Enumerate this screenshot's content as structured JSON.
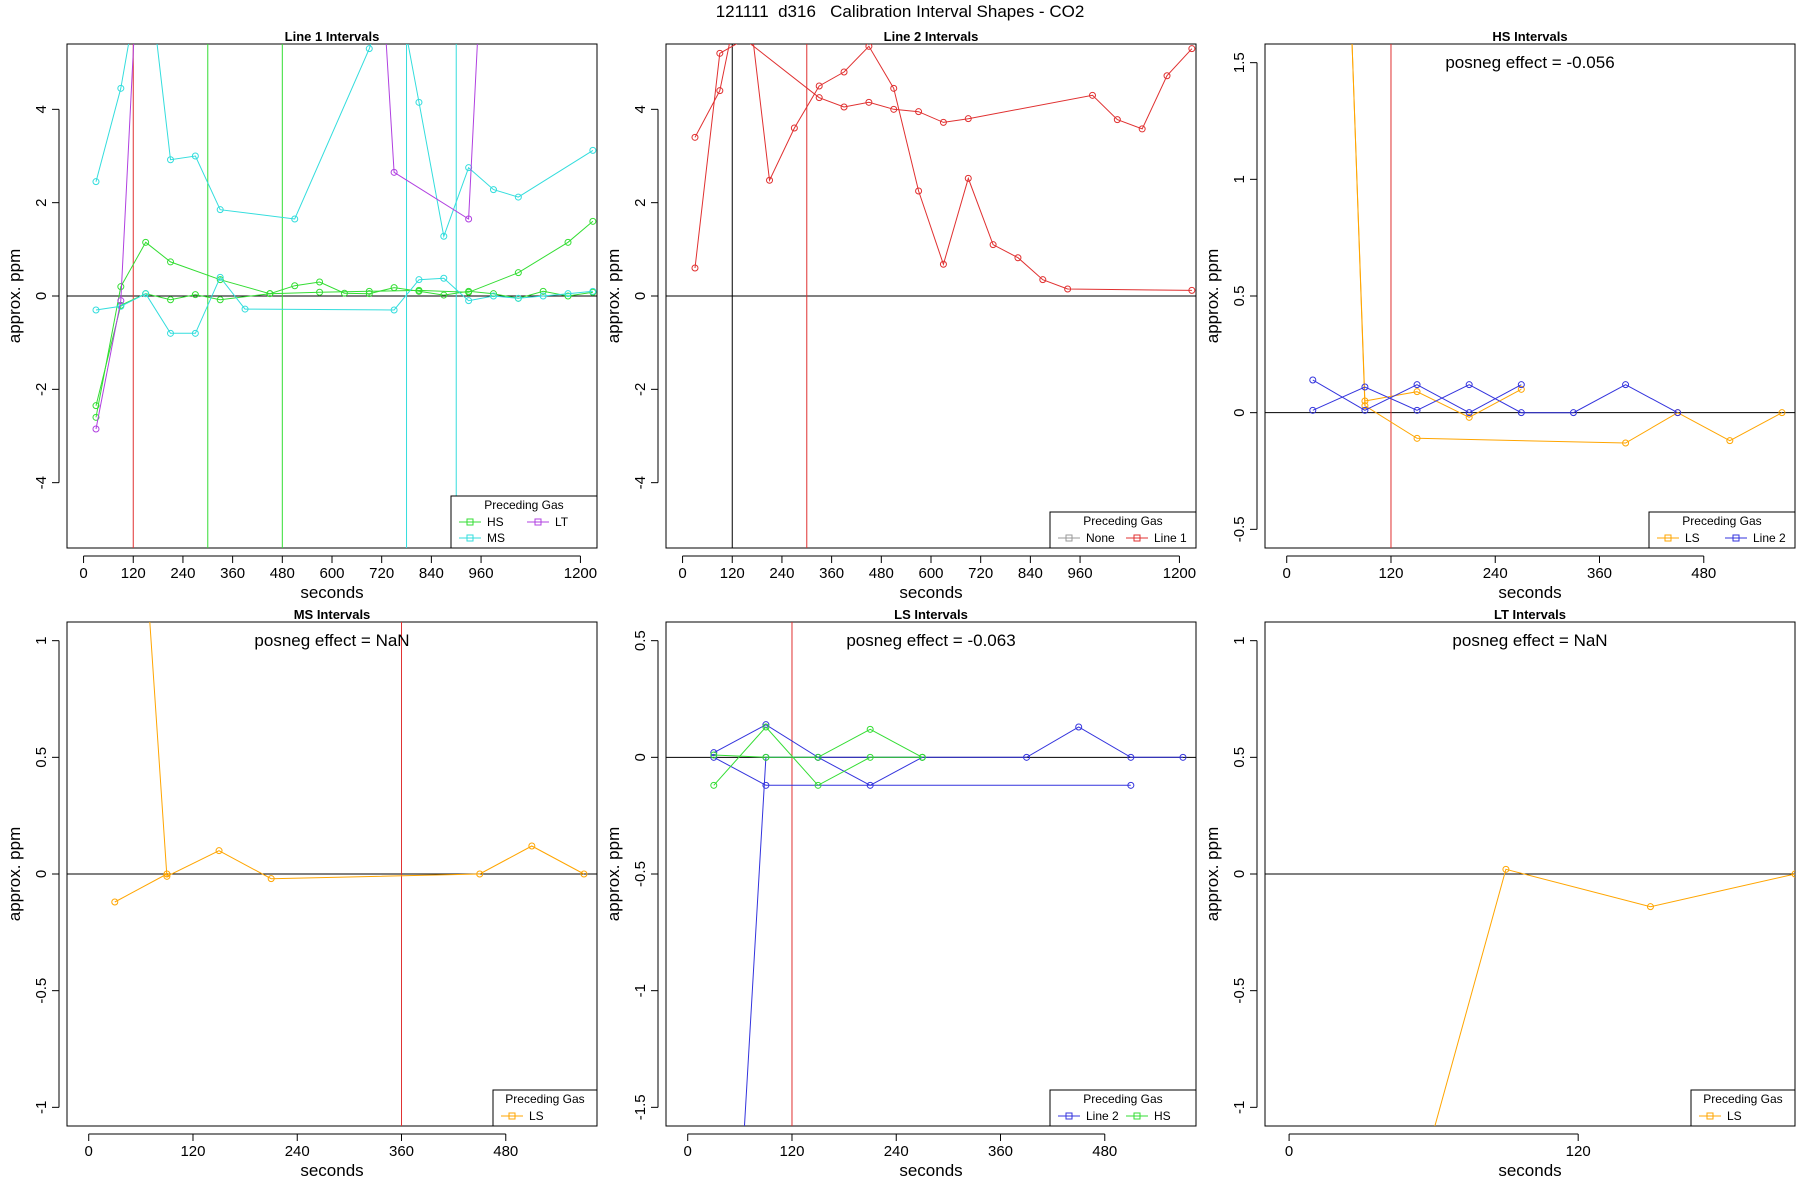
{
  "page_title": "121111  d316   Calibration Interval Shapes - CO2",
  "colors": {
    "HS": "#33dd33",
    "MS": "#33dddd",
    "LS": "#ffa500",
    "LT": "#b040e0",
    "Line 1": "#e03030",
    "Line 2": "#3333dd",
    "None": "#999999",
    "axis": "#000000"
  },
  "chart_data": [
    {
      "type": "line",
      "title": "Line 1 Intervals",
      "xlabel": "seconds",
      "ylabel": "approx. ppm",
      "xlim": [
        -40,
        1240
      ],
      "ylim": [
        -5.4,
        5.4
      ],
      "xticks": [
        0,
        120,
        240,
        360,
        480,
        600,
        720,
        840,
        960,
        1200
      ],
      "yticks": [
        -4,
        -2,
        0,
        2,
        4
      ],
      "hline": 0,
      "annotation": "",
      "legend": {
        "title": "Preceding Gas",
        "entries": [
          "HS",
          "LT",
          "MS"
        ],
        "columns": 2
      },
      "vlines": [
        {
          "x": 120,
          "color": "Line 1"
        },
        {
          "x": 300,
          "color": "HS"
        },
        {
          "x": 480,
          "color": "HS"
        },
        {
          "x": 780,
          "color": "MS"
        },
        {
          "x": 900,
          "color": "MS"
        }
      ],
      "series": [
        {
          "name": "HS",
          "x": [
            30,
            90,
            150,
            210,
            330,
            450,
            570,
            690,
            810,
            930,
            1050,
            1170,
            1230
          ],
          "y": [
            -2.6,
            0.2,
            1.15,
            0.73,
            0.35,
            0.05,
            0.08,
            0.1,
            0.12,
            0.08,
            0.5,
            1.15,
            1.6
          ]
        },
        {
          "name": "HS",
          "x": [
            30,
            90,
            150,
            210,
            270,
            330,
            450,
            510,
            570,
            630,
            690,
            750,
            810,
            870,
            930,
            990,
            1050,
            1110,
            1170,
            1230
          ],
          "y": [
            -2.35,
            -0.2,
            0.05,
            -0.08,
            0.03,
            -0.08,
            0.05,
            0.22,
            0.3,
            0.06,
            0.05,
            0.18,
            0.1,
            0.02,
            0.1,
            0.05,
            -0.05,
            0.1,
            0.0,
            0.08
          ]
        },
        {
          "name": "MS",
          "x": [
            30,
            90,
            150,
            210,
            270,
            330,
            510,
            690,
            750,
            810,
            870,
            930,
            990,
            1050,
            1230
          ],
          "y": [
            2.45,
            4.45,
            7.5,
            2.92,
            3.0,
            1.85,
            1.65,
            5.3,
            7.0,
            4.15,
            1.28,
            2.75,
            2.28,
            2.12,
            3.12
          ]
        },
        {
          "name": "MS",
          "x": [
            30,
            90,
            150,
            210,
            270,
            330,
            390,
            750,
            810,
            870,
            930,
            990,
            1050,
            1110,
            1170,
            1230
          ],
          "y": [
            -0.3,
            -0.22,
            0.05,
            -0.8,
            -0.8,
            0.4,
            -0.28,
            -0.3,
            0.35,
            0.38,
            -0.1,
            0.0,
            -0.05,
            0.0,
            0.05,
            0.1
          ]
        },
        {
          "name": "LT",
          "x": [
            30,
            90,
            130
          ],
          "y": [
            -2.85,
            -0.1,
            7.0
          ]
        },
        {
          "name": "LT",
          "x": [
            720,
            750,
            930,
            960
          ],
          "y": [
            7.0,
            2.65,
            1.65,
            7.0
          ]
        }
      ]
    },
    {
      "type": "line",
      "title": "Line 2 Intervals",
      "xlabel": "seconds",
      "ylabel": "approx. ppm",
      "xlim": [
        -40,
        1240
      ],
      "ylim": [
        -5.4,
        5.4
      ],
      "xticks": [
        0,
        120,
        240,
        360,
        480,
        600,
        720,
        840,
        960,
        1200
      ],
      "yticks": [
        -4,
        -2,
        0,
        2,
        4
      ],
      "hline": 0,
      "annotation": "",
      "legend": {
        "title": "Preceding Gas",
        "entries": [
          "None",
          "Line 1"
        ],
        "columns": 2
      },
      "vlines": [
        {
          "x": 120,
          "color": "axis"
        },
        {
          "x": 300,
          "color": "Line 1"
        }
      ],
      "series": [
        {
          "name": "Line 1",
          "x": [
            30,
            90,
            150,
            210,
            270,
            330,
            390,
            450,
            510,
            570,
            630,
            690,
            750,
            810,
            870,
            930,
            1230
          ],
          "y": [
            3.4,
            4.4,
            7.0,
            2.48,
            3.6,
            4.5,
            4.8,
            5.35,
            4.45,
            2.25,
            0.68,
            2.52,
            1.1,
            0.82,
            0.35,
            0.15,
            0.12
          ]
        },
        {
          "name": "Line 1",
          "x": [
            30,
            90,
            150,
            330,
            390,
            450,
            510,
            570,
            630,
            690,
            990,
            1050,
            1110,
            1170,
            1230
          ],
          "y": [
            0.6,
            5.2,
            5.5,
            4.25,
            4.05,
            4.15,
            4.0,
            3.95,
            3.72,
            3.8,
            4.3,
            3.78,
            3.58,
            4.72,
            5.3
          ]
        }
      ]
    },
    {
      "type": "line",
      "title": "HS Intervals",
      "xlabel": "seconds",
      "ylabel": "approx. ppm",
      "xlim": [
        -25,
        585
      ],
      "ylim": [
        -0.58,
        1.58
      ],
      "xticks": [
        0,
        120,
        240,
        360,
        480
      ],
      "yticks": [
        -0.5,
        0.0,
        0.5,
        1.0,
        1.5
      ],
      "hline": 0,
      "annotation": "posneg effect = -0.056",
      "legend": {
        "title": "Preceding Gas",
        "entries": [
          "LS",
          "Line 2"
        ],
        "columns": 2
      },
      "vlines": [
        {
          "x": 120,
          "color": "Line 1"
        }
      ],
      "series": [
        {
          "name": "LS",
          "x": [
            75,
            90,
            150,
            390,
            450,
            510,
            570
          ],
          "y": [
            1.6,
            0.03,
            -0.11,
            -0.13,
            0.0,
            -0.12,
            0.0
          ]
        },
        {
          "name": "LS",
          "x": [
            75,
            90,
            150,
            210,
            270
          ],
          "y": [
            1.6,
            0.05,
            0.09,
            -0.02,
            0.1
          ]
        },
        {
          "name": "Line 2",
          "x": [
            30,
            90,
            150,
            210,
            270
          ],
          "y": [
            0.14,
            0.01,
            0.12,
            0.0,
            0.12
          ]
        },
        {
          "name": "Line 2",
          "x": [
            30,
            90,
            150,
            210,
            270,
            330,
            390,
            450
          ],
          "y": [
            0.01,
            0.11,
            0.01,
            0.12,
            0.0,
            0.0,
            0.12,
            0.0
          ]
        }
      ]
    },
    {
      "type": "line",
      "title": "MS Intervals",
      "xlabel": "seconds",
      "ylabel": "approx. ppm",
      "xlim": [
        -25,
        585
      ],
      "ylim": [
        -1.08,
        1.08
      ],
      "xticks": [
        0,
        120,
        240,
        360,
        480
      ],
      "yticks": [
        -1.0,
        -0.5,
        0.0,
        0.5,
        1.0
      ],
      "hline": 0,
      "annotation": "posneg effect = NaN",
      "legend": {
        "title": "Preceding Gas",
        "entries": [
          "LS"
        ],
        "columns": 1
      },
      "vlines": [
        {
          "x": 360,
          "color": "Line 1"
        }
      ],
      "series": [
        {
          "name": "LS",
          "x": [
            70,
            90,
            150,
            210,
            450,
            510,
            570
          ],
          "y": [
            1.1,
            -0.01,
            0.1,
            -0.02,
            0.0,
            0.12,
            0.0
          ]
        },
        {
          "name": "LS",
          "x": [
            30,
            90
          ],
          "y": [
            -0.12,
            0.0
          ]
        }
      ]
    },
    {
      "type": "line",
      "title": "LS Intervals",
      "xlabel": "seconds",
      "ylabel": "approx. ppm",
      "xlim": [
        -25,
        585
      ],
      "ylim": [
        -1.58,
        0.58
      ],
      "xticks": [
        0,
        120,
        240,
        360,
        480
      ],
      "yticks": [
        -1.5,
        -1.0,
        -0.5,
        0.0,
        0.5
      ],
      "hline": 0,
      "annotation": "posneg effect = -0.063",
      "legend": {
        "title": "Preceding Gas",
        "entries": [
          "Line 2",
          "HS"
        ],
        "columns": 2
      },
      "vlines": [
        {
          "x": 120,
          "color": "Line 1"
        }
      ],
      "series": [
        {
          "name": "Line 2",
          "x": [
            65,
            90,
            150,
            210,
            270
          ],
          "y": [
            -1.6,
            0.0,
            0.0,
            -0.12,
            0.0
          ]
        },
        {
          "name": "Line 2",
          "x": [
            30,
            90,
            150,
            390,
            450,
            510,
            570
          ],
          "y": [
            0.02,
            0.14,
            0.0,
            0.0,
            0.13,
            0.0,
            0.0
          ]
        },
        {
          "name": "Line 2",
          "x": [
            30,
            90,
            510
          ],
          "y": [
            0.0,
            -0.12,
            -0.12
          ]
        },
        {
          "name": "HS",
          "x": [
            30,
            90,
            150,
            210,
            270
          ],
          "y": [
            -0.12,
            0.13,
            -0.12,
            0.0,
            0.0
          ]
        },
        {
          "name": "HS",
          "x": [
            30,
            90,
            150,
            210,
            270
          ],
          "y": [
            0.01,
            0.0,
            0.0,
            0.12,
            0.0
          ]
        }
      ]
    },
    {
      "type": "line",
      "title": "LT Intervals",
      "xlabel": "seconds",
      "ylabel": "approx. ppm",
      "xlim": [
        -10,
        210
      ],
      "ylim": [
        -1.08,
        1.08
      ],
      "xticks": [
        0,
        120
      ],
      "yticks": [
        -1.0,
        -0.5,
        0.0,
        0.5,
        1.0
      ],
      "hline": 0,
      "annotation": "posneg effect = NaN",
      "legend": {
        "title": "Preceding Gas",
        "entries": [
          "LS"
        ],
        "columns": 1
      },
      "vlines": [],
      "series": [
        {
          "name": "LS",
          "x": [
            60,
            90,
            150,
            210
          ],
          "y": [
            -1.1,
            0.02,
            -0.14,
            0.0
          ]
        }
      ]
    }
  ]
}
